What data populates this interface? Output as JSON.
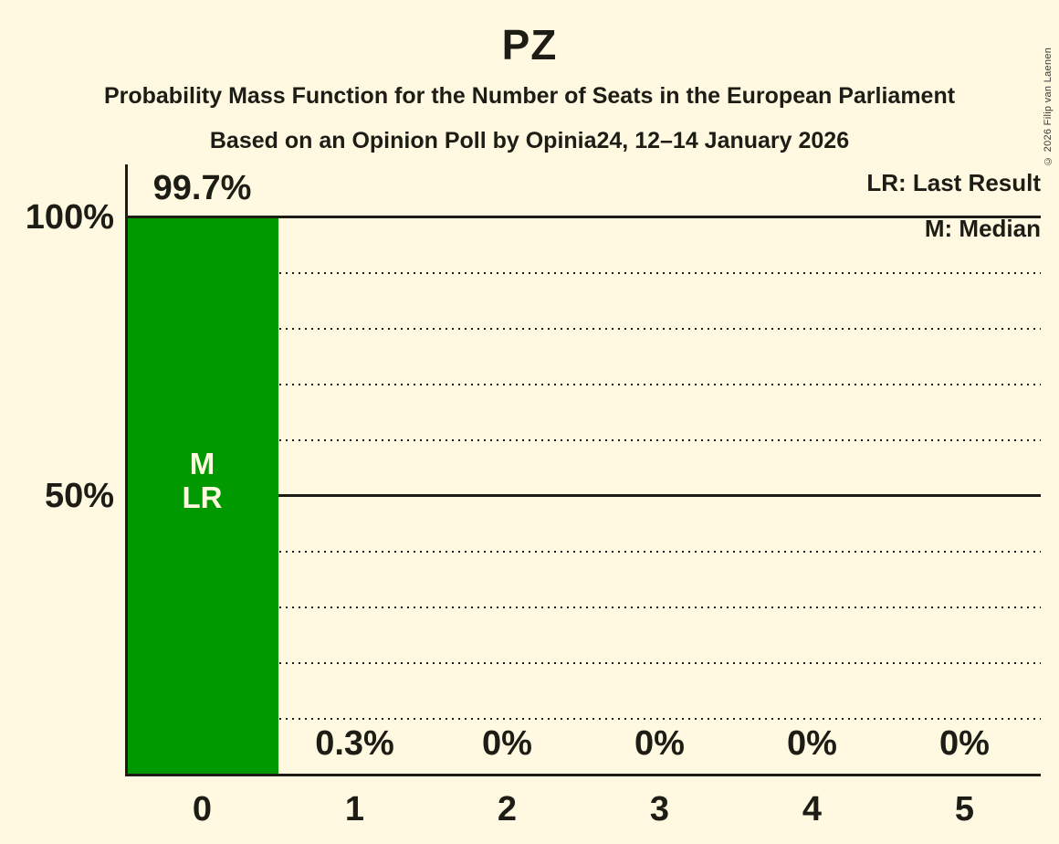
{
  "title": "PZ",
  "subtitle1": "Probability Mass Function for the Number of Seats in the European Parliament",
  "subtitle2": "Based on an Opinion Poll by Opinia24, 12–14 January 2026",
  "copyright": "© 2026 Filip van Laenen",
  "legend": {
    "lr": "LR: Last Result",
    "m": "M: Median"
  },
  "colors": {
    "background": "#FFF9E1",
    "bar": "#009A00",
    "text": "#1d1d16",
    "annotation_text": "#FFF9E1"
  },
  "chart_data": {
    "type": "bar",
    "title": "PZ",
    "categories": [
      "0",
      "1",
      "2",
      "3",
      "4",
      "5"
    ],
    "values": [
      99.7,
      0.3,
      0,
      0,
      0,
      0
    ],
    "value_labels": [
      "99.7%",
      "0.3%",
      "0%",
      "0%",
      "0%",
      "0%"
    ],
    "bar_annotations": [
      {
        "category_index": 0,
        "lines": [
          "M",
          "LR"
        ]
      }
    ],
    "ylim": [
      0,
      100
    ],
    "yticks": [
      {
        "value": 100,
        "label": "100%"
      },
      {
        "value": 50,
        "label": "50%"
      }
    ],
    "gridlines": {
      "solid_at": [
        100,
        50
      ],
      "dotted_at": [
        90,
        80,
        70,
        60,
        40,
        30,
        20,
        10
      ]
    },
    "grid": true,
    "legend_position": "top-right",
    "bar_color": "#009A00"
  }
}
